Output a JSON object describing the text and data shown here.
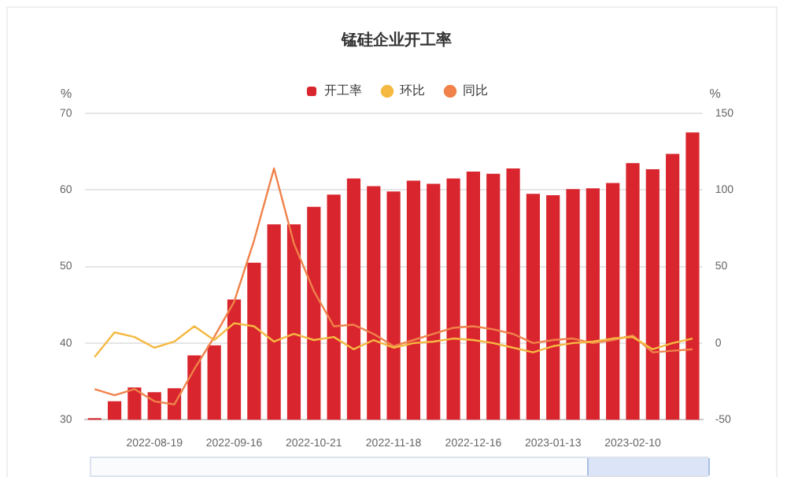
{
  "chart_data": {
    "type": "bar",
    "title": "锰硅企业开工率",
    "ylabel": "%",
    "y2label": "%",
    "categories": [
      null,
      null,
      null,
      "2022-08-19",
      null,
      null,
      null,
      "2022-09-16",
      null,
      null,
      null,
      "2022-10-21",
      null,
      null,
      null,
      "2022-11-18",
      null,
      null,
      null,
      "2022-12-16",
      null,
      null,
      null,
      "2023-01-13",
      null,
      null,
      null,
      "2023-02-10",
      null,
      null,
      null
    ],
    "series": [
      {
        "name": "开工率",
        "color": "#d9262e",
        "values": [
          30.2,
          32.4,
          34.2,
          33.6,
          34.1,
          38.4,
          39.7,
          45.7,
          50.5,
          55.5,
          55.5,
          57.8,
          59.4,
          61.5,
          60.5,
          59.8,
          61.2,
          60.8,
          61.5,
          62.4,
          62.1,
          62.8,
          59.5,
          59.3,
          60.1,
          60.2,
          60.9,
          63.5,
          62.7,
          64.7,
          67.5
        ]
      },
      {
        "name": "环比",
        "type": "line",
        "axis": "y2",
        "color": "#f5b942",
        "values": [
          -9,
          7,
          4,
          -3,
          1,
          11,
          2,
          13,
          11,
          1,
          6,
          2,
          4,
          -4,
          2,
          -3,
          0,
          1,
          3,
          2,
          0,
          -3,
          -6,
          -2,
          0,
          1,
          3,
          4,
          -4,
          0,
          3
        ]
      },
      {
        "name": "同比",
        "type": "line",
        "axis": "y2",
        "color": "#f0824a",
        "values": [
          -30,
          -34,
          -30,
          -38,
          -40,
          -17,
          4,
          27,
          67,
          114,
          65,
          34,
          11,
          12,
          6,
          -2,
          2,
          6,
          10,
          11,
          9,
          6,
          0,
          2,
          3,
          0,
          2,
          5,
          -6,
          -5,
          -4
        ]
      }
    ],
    "ylim": [
      30,
      70
    ],
    "yticks": [
      30,
      40,
      50,
      60,
      70
    ],
    "y2lim": [
      -50,
      150
    ],
    "y2ticks": [
      -50,
      0,
      50,
      100,
      150
    ],
    "grid": "y",
    "legend": "top",
    "marker": "none"
  }
}
